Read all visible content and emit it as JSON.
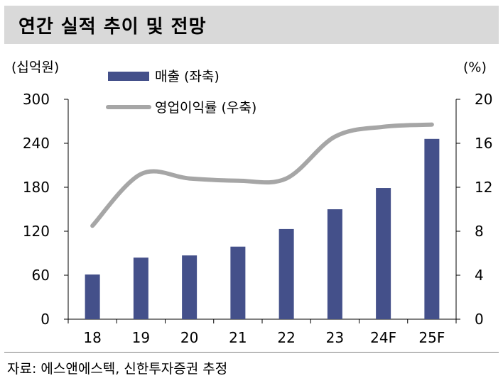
{
  "title": "연간 실적 추이 및 전망",
  "source": "자료: 에스앤에스텍, 신한투자증권 추정",
  "chart_data": {
    "type": "bar",
    "categories": [
      "18",
      "19",
      "20",
      "21",
      "22",
      "23",
      "24F",
      "25F"
    ],
    "series": [
      {
        "name": "매출 (좌축)",
        "type": "bar",
        "axis": "left",
        "values": [
          61,
          84,
          87,
          99,
          123,
          150,
          179,
          246
        ],
        "color": "#44508a"
      },
      {
        "name": "영업이익률 (우축)",
        "type": "line",
        "axis": "right",
        "values": [
          8.5,
          13.2,
          12.8,
          12.6,
          12.8,
          16.6,
          17.5,
          17.7
        ],
        "color": "#a6a6a6"
      }
    ],
    "left_axis": {
      "label": "(십억원)",
      "ylim": [
        0,
        300
      ],
      "ticks": [
        0,
        60,
        120,
        180,
        240,
        300
      ]
    },
    "right_axis": {
      "label": "(%)",
      "ylim": [
        0,
        20
      ],
      "ticks": [
        0,
        4,
        8,
        12,
        16,
        20
      ]
    },
    "legend_position": "top-left"
  }
}
